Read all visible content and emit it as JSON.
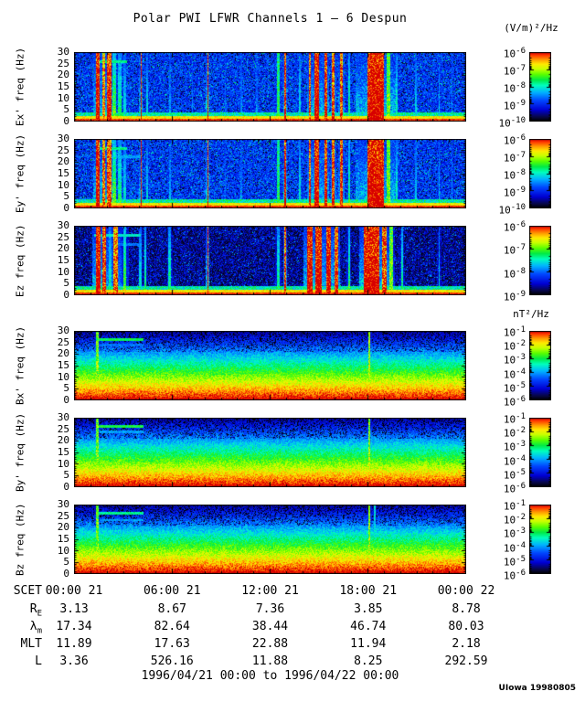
{
  "title": "Polar PWI LFWR Channels 1 — 6 Despun",
  "credit": "UIowa 19980805",
  "chart_data": {
    "type": "heatmap",
    "subtype": "time-frequency spectrogram stack (6 panels)",
    "time_range_label": "1996/04/21 00:00 to 1996/04/22 00:00",
    "x_axis": {
      "label": "SCET",
      "span_hours": 24,
      "tick_labels": [
        "00:00 21",
        "06:00 21",
        "12:00 21",
        "18:00 21",
        "00:00 22"
      ]
    },
    "freq_axis": {
      "unit": "Hz",
      "min": 0,
      "max": 30,
      "tick_labels": [
        "30",
        "25",
        "20",
        "15",
        "10",
        "5",
        "0"
      ]
    },
    "units": {
      "electric": "(V/m)²/Hz",
      "magnetic": "nT²/Hz"
    },
    "colormap": [
      {
        "v": 0.0,
        "c": [
          0,
          0,
          0
        ]
      },
      {
        "v": 0.06,
        "c": [
          8,
          8,
          70
        ]
      },
      {
        "v": 0.16,
        "c": [
          0,
          0,
          210
        ]
      },
      {
        "v": 0.3,
        "c": [
          0,
          70,
          255
        ]
      },
      {
        "v": 0.42,
        "c": [
          0,
          180,
          255
        ]
      },
      {
        "v": 0.52,
        "c": [
          0,
          255,
          190
        ]
      },
      {
        "v": 0.6,
        "c": [
          0,
          235,
          70
        ]
      },
      {
        "v": 0.68,
        "c": [
          90,
          255,
          0
        ]
      },
      {
        "v": 0.76,
        "c": [
          200,
          255,
          0
        ]
      },
      {
        "v": 0.83,
        "c": [
          255,
          235,
          0
        ]
      },
      {
        "v": 0.9,
        "c": [
          255,
          150,
          0
        ]
      },
      {
        "v": 0.96,
        "c": [
          255,
          60,
          0
        ]
      },
      {
        "v": 1.0,
        "c": [
          215,
          0,
          0
        ]
      }
    ],
    "panels": [
      {
        "name": "Ex",
        "ylabel": "Ex' freq (Hz)",
        "kind": "E",
        "seed": 11,
        "bg": 0.27,
        "speck": 0.1,
        "colorbar_exponents": [
          -6,
          -7,
          -8,
          -9,
          -10
        ],
        "events": [
          [
            0.06,
            0.01,
            1.0
          ],
          [
            0.074,
            0.008,
            0.8
          ],
          [
            0.088,
            0.012,
            0.95
          ],
          [
            0.102,
            0.01,
            0.6
          ],
          [
            0.115,
            0.008,
            0.5
          ],
          [
            0.128,
            0.006,
            0.4
          ],
          [
            0.17,
            0.004,
            1.0
          ],
          [
            0.186,
            0.005,
            0.4
          ],
          [
            0.243,
            0.004,
            0.32
          ],
          [
            0.3,
            0.003,
            0.3
          ],
          [
            0.34,
            0.004,
            1.0
          ],
          [
            0.385,
            0.003,
            0.28
          ],
          [
            0.425,
            0.004,
            0.3
          ],
          [
            0.465,
            0.003,
            0.28
          ],
          [
            0.52,
            0.008,
            0.5,
            1
          ],
          [
            0.538,
            0.004,
            0.95
          ],
          [
            0.575,
            0.005,
            0.42
          ],
          [
            0.6,
            0.006,
            0.9
          ],
          [
            0.618,
            0.01,
            1.0
          ],
          [
            0.64,
            0.007,
            0.95
          ],
          [
            0.66,
            0.006,
            0.9
          ],
          [
            0.681,
            0.007,
            0.9
          ],
          [
            0.7,
            0.004,
            0.5
          ],
          [
            0.768,
            0.042,
            1.0
          ],
          [
            0.8,
            0.01,
            0.58,
            1
          ],
          [
            0.822,
            0.005,
            0.45
          ],
          [
            0.87,
            0.004,
            0.38
          ],
          [
            0.93,
            0.004,
            0.36
          ],
          [
            0.962,
            0.003,
            0.3
          ]
        ],
        "hlines": [
          {
            "f": 26,
            "t0": 0.055,
            "t1": 0.135,
            "a": 0.55
          }
        ]
      },
      {
        "name": "Ey",
        "ylabel": "Ey' freq (Hz)",
        "kind": "E",
        "seed": 22,
        "bg": 0.27,
        "speck": 0.1,
        "colorbar_exponents": [
          -6,
          -7,
          -8,
          -9,
          -10
        ],
        "events": [
          [
            0.06,
            0.01,
            1.0
          ],
          [
            0.074,
            0.008,
            0.85
          ],
          [
            0.088,
            0.012,
            0.9
          ],
          [
            0.102,
            0.01,
            0.62
          ],
          [
            0.115,
            0.008,
            0.52
          ],
          [
            0.128,
            0.006,
            0.42
          ],
          [
            0.17,
            0.004,
            1.0
          ],
          [
            0.186,
            0.005,
            0.4
          ],
          [
            0.243,
            0.004,
            0.34
          ],
          [
            0.34,
            0.004,
            1.0
          ],
          [
            0.385,
            0.003,
            0.28
          ],
          [
            0.425,
            0.004,
            0.3
          ],
          [
            0.52,
            0.008,
            0.48,
            1
          ],
          [
            0.538,
            0.004,
            1.0
          ],
          [
            0.575,
            0.005,
            0.44
          ],
          [
            0.6,
            0.006,
            0.92
          ],
          [
            0.618,
            0.01,
            1.0
          ],
          [
            0.64,
            0.007,
            0.95
          ],
          [
            0.66,
            0.006,
            0.92
          ],
          [
            0.681,
            0.007,
            0.92
          ],
          [
            0.7,
            0.004,
            0.52
          ],
          [
            0.768,
            0.042,
            1.0
          ],
          [
            0.8,
            0.01,
            0.6,
            1
          ],
          [
            0.822,
            0.005,
            0.45
          ],
          [
            0.87,
            0.004,
            0.38
          ],
          [
            0.93,
            0.004,
            0.36
          ],
          [
            0.962,
            0.003,
            0.3
          ]
        ],
        "hlines": [
          {
            "f": 26,
            "t0": 0.055,
            "t1": 0.135,
            "a": 0.55
          },
          {
            "f": 22.5,
            "t0": 0.075,
            "t1": 0.17,
            "a": 0.4
          }
        ]
      },
      {
        "name": "Ez",
        "ylabel": "Ez freq (Hz)",
        "kind": "E",
        "seed": 33,
        "bg": 0.16,
        "speck": 0.3,
        "colorbar_exponents": [
          -6,
          -7,
          -8,
          -9
        ],
        "events": [
          [
            0.06,
            0.012,
            1.0
          ],
          [
            0.076,
            0.01,
            0.9
          ],
          [
            0.091,
            0.005,
            0.45
          ],
          [
            0.105,
            0.012,
            0.85
          ],
          [
            0.128,
            0.008,
            0.6
          ],
          [
            0.168,
            0.005,
            0.42
          ],
          [
            0.18,
            0.004,
            0.5
          ],
          [
            0.243,
            0.006,
            0.5
          ],
          [
            0.34,
            0.004,
            1.0
          ],
          [
            0.52,
            0.006,
            0.5
          ],
          [
            0.538,
            0.004,
            0.9
          ],
          [
            0.6,
            0.014,
            1.0
          ],
          [
            0.622,
            0.016,
            1.0
          ],
          [
            0.648,
            0.012,
            1.0
          ],
          [
            0.668,
            0.008,
            0.9
          ],
          [
            0.7,
            0.005,
            0.55
          ],
          [
            0.745,
            0.014,
            1.0
          ],
          [
            0.762,
            0.03,
            1.0
          ],
          [
            0.79,
            0.012,
            0.9
          ],
          [
            0.808,
            0.008,
            0.6,
            1
          ],
          [
            0.835,
            0.005,
            0.5
          ],
          [
            0.93,
            0.004,
            0.4
          ]
        ],
        "hlines": [
          {
            "f": 26,
            "t0": 0.05,
            "t1": 0.17,
            "a": 0.5
          },
          {
            "f": 22,
            "t0": 0.09,
            "t1": 0.17,
            "a": 0.35
          }
        ]
      },
      {
        "name": "Bx",
        "ylabel": "Bx' freq (Hz)",
        "kind": "B",
        "seed": 44,
        "bg": 0.2,
        "speck": 0.0,
        "colorbar_exponents": [
          -1,
          -2,
          -3,
          -4,
          -5,
          -6
        ],
        "events": [
          [
            0.058,
            0.006,
            0.62,
            1
          ],
          [
            0.752,
            0.006,
            0.66,
            1
          ]
        ],
        "hlines": [
          {
            "f": 26.5,
            "t0": 0.058,
            "t1": 0.175,
            "a": 0.6
          },
          {
            "f": 24,
            "t0": 0.065,
            "t1": 0.175,
            "a": 0.35
          }
        ]
      },
      {
        "name": "By",
        "ylabel": "By' freq (Hz)",
        "kind": "B",
        "seed": 55,
        "bg": 0.2,
        "speck": 0.0,
        "colorbar_exponents": [
          -1,
          -2,
          -3,
          -4,
          -5,
          -6
        ],
        "events": [
          [
            0.058,
            0.006,
            0.62,
            1
          ],
          [
            0.752,
            0.006,
            0.66,
            1
          ]
        ],
        "hlines": [
          {
            "f": 26.5,
            "t0": 0.058,
            "t1": 0.175,
            "a": 0.6
          },
          {
            "f": 24,
            "t0": 0.065,
            "t1": 0.175,
            "a": 0.4
          }
        ]
      },
      {
        "name": "Bz",
        "ylabel": "Bz freq (Hz)",
        "kind": "B",
        "seed": 66,
        "bg": 0.2,
        "speck": 0.0,
        "colorbar_exponents": [
          -1,
          -2,
          -3,
          -4,
          -5,
          -6
        ],
        "events": [
          [
            0.058,
            0.006,
            0.6,
            1
          ],
          [
            0.752,
            0.006,
            0.64,
            1
          ],
          [
            0.765,
            0.004,
            0.4,
            1
          ]
        ],
        "hlines": [
          {
            "f": 26.5,
            "t0": 0.058,
            "t1": 0.175,
            "a": 0.55
          },
          {
            "f": 23.5,
            "t0": 0.065,
            "t1": 0.175,
            "a": 0.4
          }
        ]
      }
    ],
    "ephemeris": {
      "rows": [
        {
          "base": "SCET",
          "sub": "",
          "values": [
            "00:00 21",
            "06:00 21",
            "12:00 21",
            "18:00 21",
            "00:00 22"
          ]
        },
        {
          "base": "R",
          "sub": "E",
          "values": [
            "3.13",
            "8.67",
            "7.36",
            "3.85",
            "8.78"
          ]
        },
        {
          "base": "λ",
          "sub": "m",
          "values": [
            "17.34",
            "82.64",
            "38.44",
            "46.74",
            "80.03"
          ]
        },
        {
          "base": "MLT",
          "sub": "",
          "values": [
            "11.89",
            "17.63",
            "22.88",
            "11.94",
            "2.18"
          ]
        },
        {
          "base": "L",
          "sub": "",
          "values": [
            "3.36",
            "526.16",
            "11.88",
            "8.25",
            "292.59"
          ]
        }
      ]
    }
  }
}
